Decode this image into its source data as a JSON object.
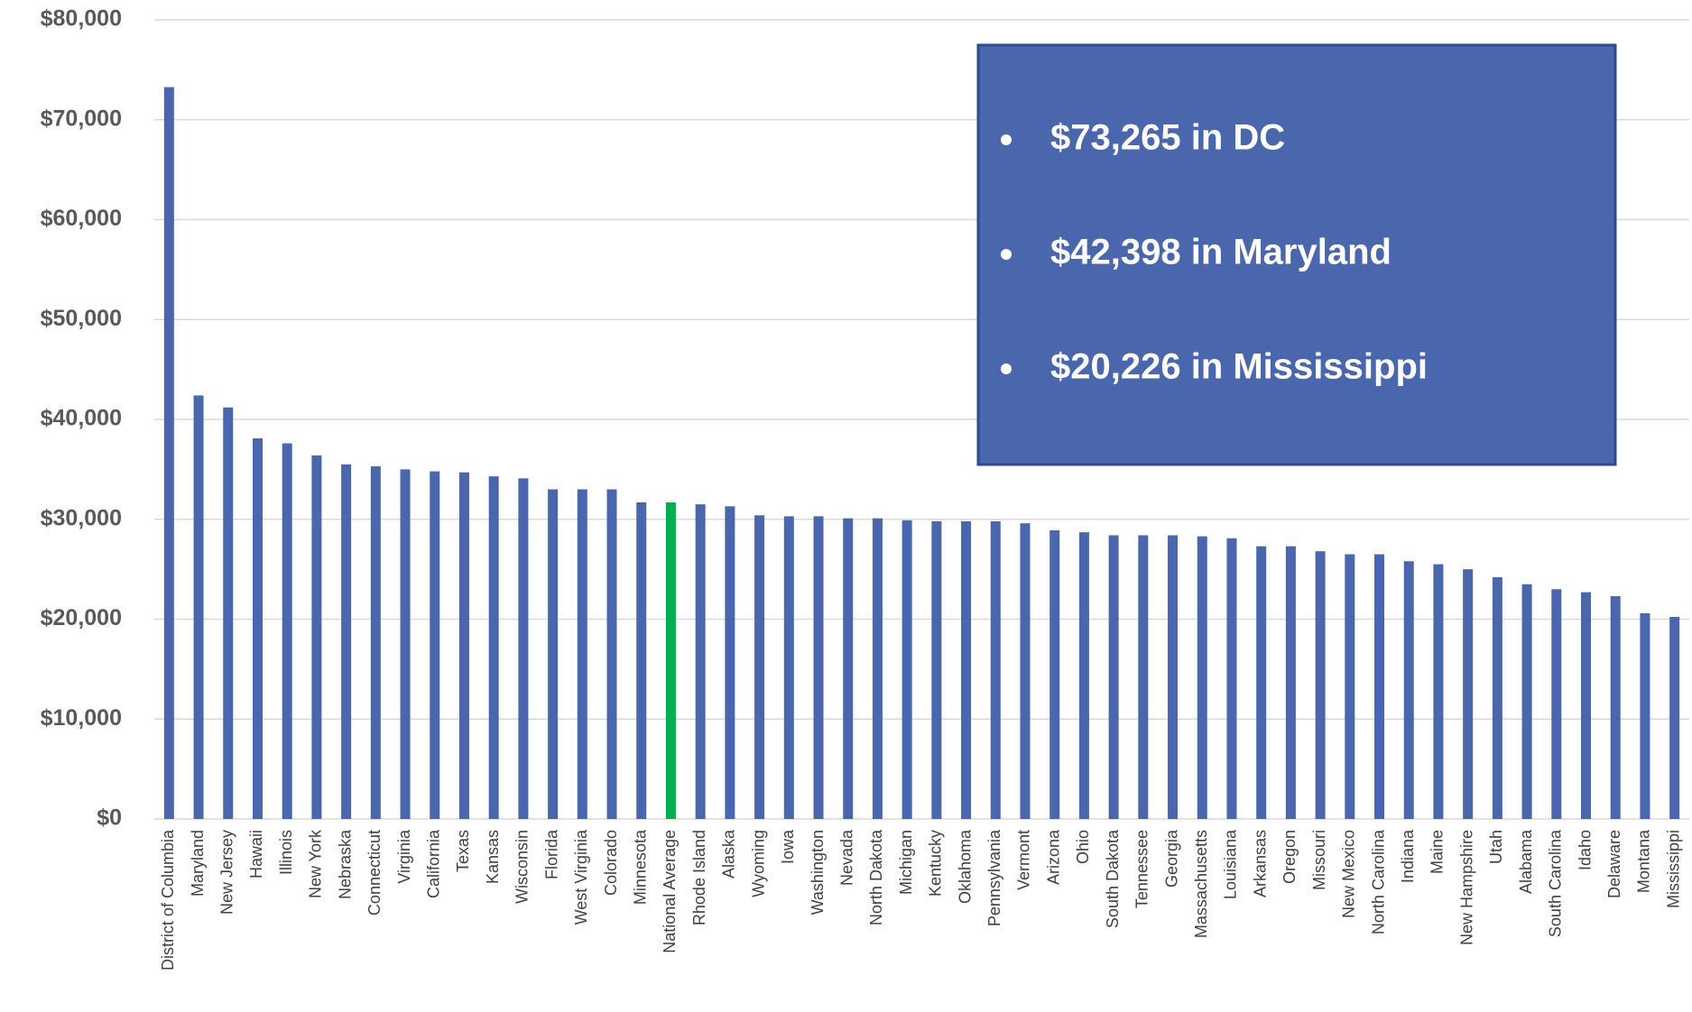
{
  "chart_data": {
    "type": "bar",
    "categories": [
      "District of Columbia",
      "Maryland",
      "New Jersey",
      "Hawaii",
      "Illinois",
      "New York",
      "Nebraska",
      "Connecticut",
      "Virginia",
      "California",
      "Texas",
      "Kansas",
      "Wisconsin",
      "Florida",
      "West Virginia",
      "Colorado",
      "Minnesota",
      "National Average",
      "Rhode Island",
      "Alaska",
      "Wyoming",
      "Iowa",
      "Washington",
      "Nevada",
      "North Dakota",
      "Michigan",
      "Kentucky",
      "Oklahoma",
      "Pennsylvania",
      "Vermont",
      "Arizona",
      "Ohio",
      "South Dakota",
      "Tennessee",
      "Georgia",
      "Massachusetts",
      "Louisiana",
      "Arkansas",
      "Oregon",
      "Missouri",
      "New Mexico",
      "North Carolina",
      "Indiana",
      "Maine",
      "New Hampshire",
      "Utah",
      "Alabama",
      "South Carolina",
      "Idaho",
      "Delaware",
      "Montana",
      "Mississippi"
    ],
    "values": [
      73265,
      42398,
      41200,
      38100,
      37600,
      36400,
      35500,
      35300,
      35000,
      34800,
      34700,
      34300,
      34100,
      33000,
      33000,
      33000,
      31700,
      31700,
      31500,
      31300,
      30400,
      30300,
      30300,
      30100,
      30100,
      29900,
      29800,
      29800,
      29800,
      29600,
      28900,
      28700,
      28400,
      28400,
      28400,
      28300,
      28100,
      27300,
      27300,
      26800,
      26500,
      26500,
      25800,
      25500,
      25000,
      24200,
      23500,
      23000,
      22700,
      22300,
      20600,
      20226
    ],
    "colors": [
      "#4a66ac",
      "#4a66ac",
      "#4a66ac",
      "#4a66ac",
      "#4a66ac",
      "#4a66ac",
      "#4a66ac",
      "#4a66ac",
      "#4a66ac",
      "#4a66ac",
      "#4a66ac",
      "#4a66ac",
      "#4a66ac",
      "#4a66ac",
      "#4a66ac",
      "#4a66ac",
      "#4a66ac",
      "#00b050",
      "#4a66ac",
      "#4a66ac",
      "#4a66ac",
      "#4a66ac",
      "#4a66ac",
      "#4a66ac",
      "#4a66ac",
      "#4a66ac",
      "#4a66ac",
      "#4a66ac",
      "#4a66ac",
      "#4a66ac",
      "#4a66ac",
      "#4a66ac",
      "#4a66ac",
      "#4a66ac",
      "#4a66ac",
      "#4a66ac",
      "#4a66ac",
      "#4a66ac",
      "#4a66ac",
      "#4a66ac",
      "#4a66ac",
      "#4a66ac",
      "#4a66ac",
      "#4a66ac",
      "#4a66ac",
      "#4a66ac",
      "#4a66ac",
      "#4a66ac",
      "#4a66ac",
      "#4a66ac",
      "#4a66ac",
      "#4a66ac"
    ],
    "ylim": [
      0,
      80000
    ],
    "yticks": [
      {
        "value": 0,
        "label": "$0"
      },
      {
        "value": 10000,
        "label": "$10,000"
      },
      {
        "value": 20000,
        "label": "$20,000"
      },
      {
        "value": 30000,
        "label": "$30,000"
      },
      {
        "value": 40000,
        "label": "$40,000"
      },
      {
        "value": 50000,
        "label": "$50,000"
      },
      {
        "value": 60000,
        "label": "$60,000"
      },
      {
        "value": 70000,
        "label": "$70,000"
      },
      {
        "value": 80000,
        "label": "$80,000"
      }
    ],
    "grid": true,
    "annotations": [
      "$73,265 in DC",
      "$42,398 in Maryland",
      "$20,226 in Mississippi"
    ],
    "annotation_box_color": "#4a66ac"
  }
}
